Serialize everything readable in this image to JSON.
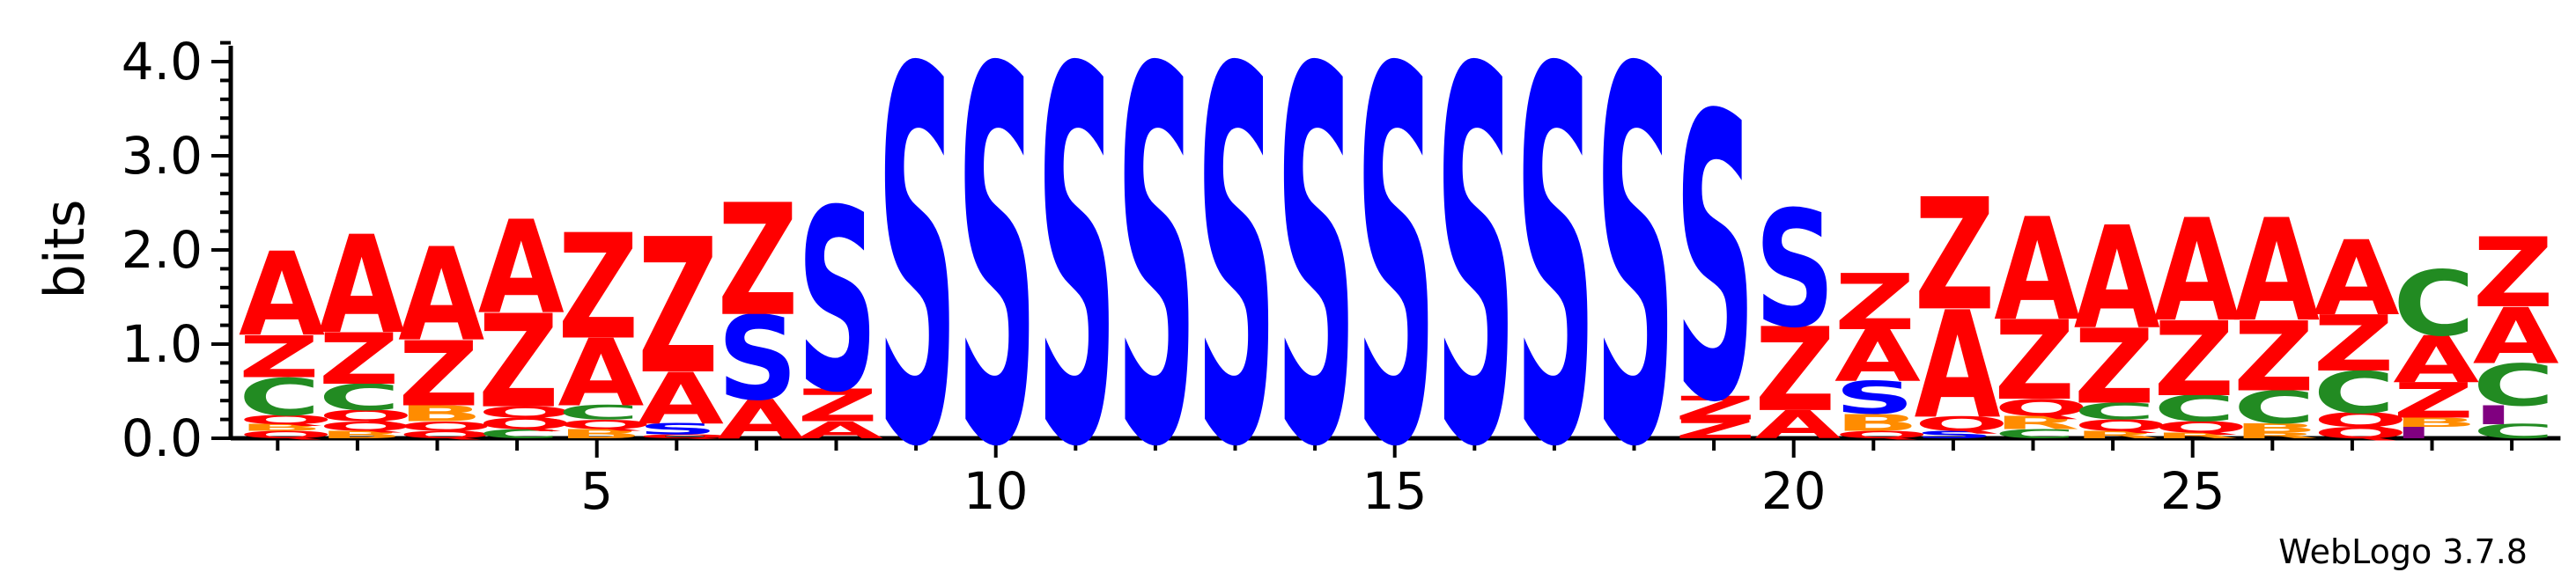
{
  "chart_data": {
    "type": "sequence-logo",
    "ylabel": "bits",
    "ylim": [
      0,
      4.32
    ],
    "y_ticks": [
      0.0,
      1.0,
      2.0,
      3.0,
      4.0
    ],
    "y_tick_labels": [
      "0.0",
      "1.0",
      "2.0",
      "3.0",
      "4.0"
    ],
    "x_ticks": [
      5,
      10,
      15,
      20,
      25
    ],
    "x_tick_labels": [
      "5",
      "10",
      "15",
      "20",
      "25"
    ],
    "positions": 29,
    "colors": {
      "A": "#ff0000",
      "Z": "#ff0000",
      "S": "#0000ff",
      "C": "#228b22",
      "B": "#ff8c00",
      "Q": "#ff0000",
      "I": "#800080",
      "R": "#ff8c00"
    },
    "columns": [
      [
        [
          "Q",
          0.08
        ],
        [
          "B",
          0.07
        ],
        [
          "Q",
          0.1
        ],
        [
          "C",
          0.4
        ],
        [
          "Z",
          0.45
        ],
        [
          "A",
          0.9
        ]
      ],
      [
        [
          "B",
          0.08
        ],
        [
          "Q",
          0.1
        ],
        [
          "Q",
          0.12
        ],
        [
          "C",
          0.28
        ],
        [
          "Z",
          0.55
        ],
        [
          "A",
          1.05
        ]
      ],
      [
        [
          "Q",
          0.08
        ],
        [
          "Q",
          0.1
        ],
        [
          "B",
          0.17
        ],
        [
          "Z",
          0.7
        ],
        [
          "A",
          1.0
        ]
      ],
      [
        [
          "C",
          0.1
        ],
        [
          "Q",
          0.12
        ],
        [
          "Q",
          0.12
        ],
        [
          "Z",
          1.0
        ],
        [
          "A",
          1.0
        ]
      ],
      [
        [
          "B",
          0.1
        ],
        [
          "Q",
          0.1
        ],
        [
          "C",
          0.15
        ],
        [
          "A",
          0.72
        ],
        [
          "Z",
          1.13
        ]
      ],
      [
        [
          "Q",
          0.04
        ],
        [
          "S",
          0.12
        ],
        [
          "A",
          0.55
        ],
        [
          "Z",
          1.45
        ]
      ],
      [
        [
          "A",
          0.42
        ],
        [
          "S",
          0.9
        ],
        [
          "Z",
          1.2
        ]
      ],
      [
        [
          "A",
          0.18
        ],
        [
          "Z",
          0.35
        ],
        [
          "S",
          1.95
        ]
      ],
      [
        [
          "S",
          4.0
        ]
      ],
      [
        [
          "S",
          4.0
        ]
      ],
      [
        [
          "S",
          4.0
        ]
      ],
      [
        [
          "S",
          4.0
        ]
      ],
      [
        [
          "S",
          4.0
        ]
      ],
      [
        [
          "S",
          4.0
        ]
      ],
      [
        [
          "S",
          4.0
        ]
      ],
      [
        [
          "S",
          4.0
        ]
      ],
      [
        [
          "S",
          4.0
        ]
      ],
      [
        [
          "S",
          4.0
        ]
      ],
      [
        [
          "Z",
          0.2
        ],
        [
          "Z",
          0.25
        ],
        [
          "S",
          3.05
        ]
      ],
      [
        [
          "A",
          0.3
        ],
        [
          "Z",
          0.9
        ],
        [
          "S",
          1.25
        ]
      ],
      [
        [
          "Q",
          0.08
        ],
        [
          "B",
          0.18
        ],
        [
          "S",
          0.35
        ],
        [
          "A",
          0.55
        ],
        [
          "Z",
          0.6
        ]
      ],
      [
        [
          "S",
          0.08
        ],
        [
          "Q",
          0.15
        ],
        [
          "A",
          1.15
        ],
        [
          "Z",
          1.2
        ]
      ],
      [
        [
          "C",
          0.1
        ],
        [
          "R",
          0.14
        ],
        [
          "Q",
          0.18
        ],
        [
          "Z",
          0.85
        ],
        [
          "A",
          1.1
        ]
      ],
      [
        [
          "R",
          0.08
        ],
        [
          "Q",
          0.12
        ],
        [
          "C",
          0.18
        ],
        [
          "Z",
          0.8
        ],
        [
          "A",
          1.1
        ]
      ],
      [
        [
          "R",
          0.06
        ],
        [
          "Q",
          0.12
        ],
        [
          "C",
          0.28
        ],
        [
          "Z",
          0.8
        ],
        [
          "A",
          1.1
        ]
      ],
      [
        [
          "R",
          0.06
        ],
        [
          "B",
          0.1
        ],
        [
          "C",
          0.35
        ],
        [
          "Z",
          0.75
        ],
        [
          "A",
          1.1
        ]
      ],
      [
        [
          "Q",
          0.12
        ],
        [
          "Q",
          0.15
        ],
        [
          "C",
          0.45
        ],
        [
          "Z",
          0.6
        ],
        [
          "A",
          0.8
        ]
      ],
      [
        [
          "I",
          0.12
        ],
        [
          "B",
          0.1
        ],
        [
          "Z",
          0.38
        ],
        [
          "A",
          0.5
        ],
        [
          "C",
          0.7
        ]
      ],
      [
        [
          "C",
          0.15
        ],
        [
          "I",
          0.2
        ],
        [
          "C",
          0.45
        ],
        [
          "A",
          0.6
        ],
        [
          "Z",
          0.75
        ]
      ]
    ]
  },
  "watermark": "WebLogo 3.7.8"
}
